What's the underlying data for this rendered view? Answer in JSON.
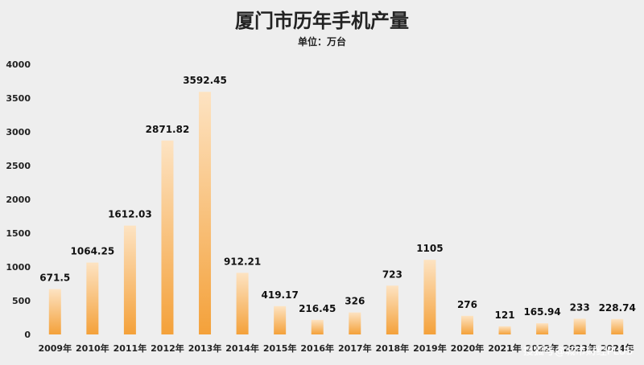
{
  "chart_data": {
    "type": "bar",
    "title": "厦门市历年手机产量",
    "subtitle": "单位：万台",
    "categories": [
      "2009年",
      "2010年",
      "2011年",
      "2012年",
      "2013年",
      "2014年",
      "2015年",
      "2016年",
      "2017年",
      "2018年",
      "2019年",
      "2020年",
      "2021年",
      "2022年",
      "2023年",
      "2024年"
    ],
    "values": [
      671.5,
      1064.25,
      1612.03,
      2871.82,
      3592.45,
      912.21,
      419.17,
      216.45,
      326,
      723,
      1105,
      276,
      121,
      165.94,
      233,
      228.74
    ],
    "data_labels": [
      "671.5",
      "1064.25",
      "1612.03",
      "2871.82",
      "3592.45",
      "912.21",
      "419.17",
      "216.45",
      "326",
      "723",
      "1105",
      "276",
      "121",
      "165.94",
      "233",
      "228.74"
    ],
    "ylim": [
      0,
      4000
    ],
    "yticks": [
      "0",
      "500",
      "1000",
      "1500",
      "2000",
      "2500",
      "3000",
      "3500",
      "4000"
    ],
    "grid": false,
    "legend": "none",
    "bar_color_top": "#fde3c2",
    "bar_color_bottom": "#f4a13a"
  },
  "watermark": "搜狐号@城市财经PLUS"
}
